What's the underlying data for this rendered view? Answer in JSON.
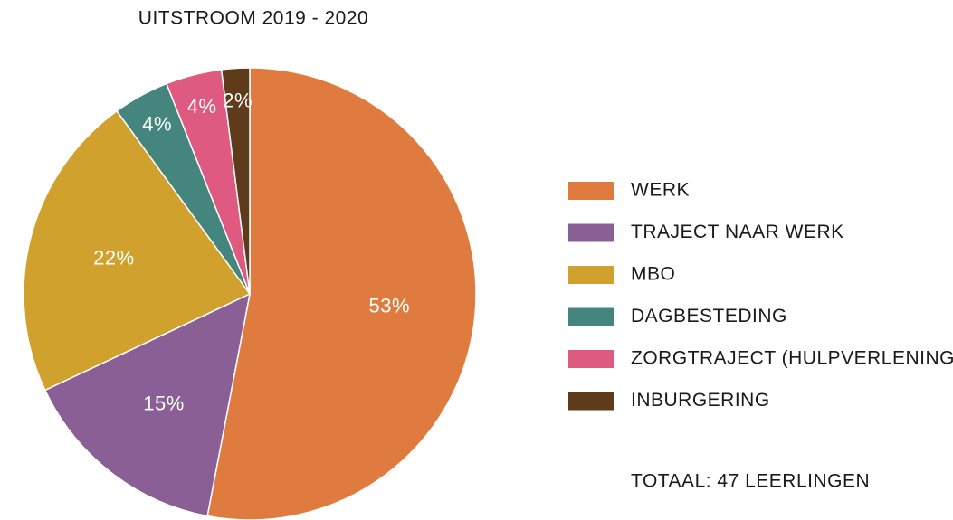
{
  "chart_data": {
    "type": "pie",
    "title": "UITSTROOM 2019 - 2020",
    "categories": [
      "WERK",
      "TRAJECT NAAR WERK",
      "MBO",
      "DAGBESTEDING",
      "ZORGTRAJECT (HULPVERLENING)",
      "INBURGERING"
    ],
    "values": [
      53,
      15,
      22,
      4,
      4,
      2
    ],
    "value_labels": [
      "53%",
      "15%",
      "22%",
      "4%",
      "4%",
      "2%"
    ],
    "colors": [
      "#e07b3f",
      "#8a5f96",
      "#d1a12e",
      "#44857d",
      "#de5a80",
      "#5e3b1a"
    ],
    "legend": "right",
    "total": "TOTAAL: 47 LEERLINGEN"
  }
}
